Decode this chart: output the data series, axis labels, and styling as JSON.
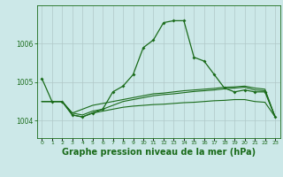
{
  "background_color": "#cce8e8",
  "grid_color": "#b0c8c8",
  "line_color": "#1a6b1a",
  "xlabel": "Graphe pression niveau de la mer (hPa)",
  "xlabel_fontsize": 7,
  "yticks": [
    1004,
    1005,
    1006
  ],
  "xlim": [
    -0.5,
    23.5
  ],
  "ylim": [
    1003.55,
    1007.0
  ],
  "series1": {
    "x": [
      0,
      1,
      2,
      3,
      4,
      5,
      6,
      7,
      8,
      9,
      10,
      11,
      12,
      13,
      14,
      15,
      16,
      17,
      18,
      19,
      20,
      21,
      22,
      23
    ],
    "y": [
      1005.1,
      1004.5,
      1004.5,
      1004.15,
      1004.1,
      1004.2,
      1004.3,
      1004.75,
      1004.9,
      1005.2,
      1005.9,
      1006.1,
      1006.55,
      1006.6,
      1006.6,
      1005.65,
      1005.55,
      1005.2,
      1004.85,
      1004.75,
      1004.8,
      1004.75,
      1004.75,
      1004.1
    ]
  },
  "series2": {
    "x": [
      0,
      1,
      2,
      3,
      4,
      5,
      6,
      7,
      8,
      9,
      10,
      11,
      12,
      13,
      14,
      15,
      16,
      17,
      18,
      19,
      20,
      21,
      22,
      23
    ],
    "y": [
      1004.5,
      1004.5,
      1004.5,
      1004.2,
      1004.3,
      1004.4,
      1004.45,
      1004.5,
      1004.55,
      1004.6,
      1004.65,
      1004.7,
      1004.72,
      1004.75,
      1004.78,
      1004.8,
      1004.82,
      1004.84,
      1004.87,
      1004.88,
      1004.9,
      1004.85,
      1004.82,
      1004.1
    ]
  },
  "series3": {
    "x": [
      0,
      1,
      2,
      3,
      4,
      5,
      6,
      7,
      8,
      9,
      10,
      11,
      12,
      13,
      14,
      15,
      16,
      17,
      18,
      19,
      20,
      21,
      22,
      23
    ],
    "y": [
      1004.5,
      1004.5,
      1004.5,
      1004.2,
      1004.15,
      1004.25,
      1004.3,
      1004.4,
      1004.5,
      1004.55,
      1004.6,
      1004.65,
      1004.68,
      1004.7,
      1004.73,
      1004.76,
      1004.78,
      1004.8,
      1004.83,
      1004.85,
      1004.87,
      1004.8,
      1004.78,
      1004.1
    ]
  },
  "series4": {
    "x": [
      0,
      1,
      2,
      3,
      4,
      5,
      6,
      7,
      8,
      9,
      10,
      11,
      12,
      13,
      14,
      15,
      16,
      17,
      18,
      19,
      20,
      21,
      22,
      23
    ],
    "y": [
      1004.5,
      1004.5,
      1004.5,
      1004.15,
      1004.1,
      1004.2,
      1004.25,
      1004.3,
      1004.35,
      1004.38,
      1004.4,
      1004.42,
      1004.43,
      1004.45,
      1004.47,
      1004.48,
      1004.5,
      1004.52,
      1004.53,
      1004.55,
      1004.55,
      1004.5,
      1004.48,
      1004.1
    ]
  },
  "xtick_labels": [
    "0",
    "1",
    "2",
    "3",
    "4",
    "5",
    "6",
    "7",
    "8",
    "9",
    "10",
    "11",
    "12",
    "13",
    "14",
    "15",
    "16",
    "17",
    "18",
    "19",
    "20",
    "21",
    "22",
    "23"
  ]
}
